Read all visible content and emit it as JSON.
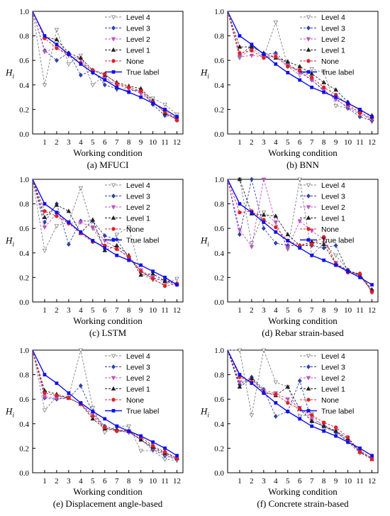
{
  "chart_data": [
    {
      "type": "line",
      "caption": "(a) MFUCI",
      "xlabel": "Working condition",
      "ylabel": "H_i",
      "ylabel_main": "H",
      "ylabel_sub": "i",
      "x": [
        0,
        1,
        2,
        3,
        4,
        5,
        6,
        7,
        8,
        9,
        10,
        11,
        12
      ],
      "xticks": [
        "1",
        "2",
        "3",
        "4",
        "5",
        "6",
        "7",
        "8",
        "9",
        "10",
        "11",
        "12"
      ],
      "yticks": [
        "0.0",
        "0.2",
        "0.4",
        "0.6",
        "0.8",
        "1.0"
      ],
      "xlim": [
        0,
        12.5
      ],
      "ylim": [
        0,
        1
      ],
      "legend_position": "top-right",
      "series": [
        {
          "name": "Level 4",
          "color": "#808080",
          "values": [
            1.0,
            0.4,
            0.85,
            0.57,
            0.64,
            0.4,
            0.48,
            0.36,
            0.37,
            0.34,
            0.29,
            0.24,
            0.16
          ]
        },
        {
          "name": "Level 3",
          "color": "#3040a8",
          "values": [
            1.0,
            0.68,
            0.6,
            0.66,
            0.48,
            0.52,
            0.4,
            0.37,
            0.35,
            0.36,
            0.24,
            0.15,
            0.14
          ]
        },
        {
          "name": "Level 2",
          "color": "#c050c0",
          "values": [
            1.0,
            0.67,
            0.7,
            0.64,
            0.61,
            0.5,
            0.45,
            0.4,
            0.37,
            0.33,
            0.26,
            0.19,
            0.12
          ]
        },
        {
          "name": "Level 1",
          "color": "#202020",
          "values": [
            1.0,
            0.79,
            0.77,
            0.66,
            0.62,
            0.52,
            0.48,
            0.42,
            0.39,
            0.37,
            0.27,
            0.17,
            0.12
          ]
        },
        {
          "name": "None",
          "color": "#e02020",
          "values": [
            1.0,
            0.78,
            0.7,
            0.65,
            0.58,
            0.52,
            0.49,
            0.41,
            0.38,
            0.35,
            0.26,
            0.18,
            0.11
          ]
        },
        {
          "name": "True label",
          "color": "#1010ee",
          "values": [
            1.0,
            0.8,
            0.73,
            0.65,
            0.57,
            0.5,
            0.44,
            0.38,
            0.34,
            0.3,
            0.25,
            0.2,
            0.14
          ]
        }
      ]
    },
    {
      "type": "line",
      "caption": "(b) BNN",
      "xlabel": "Working condition",
      "ylabel": "H_i",
      "ylabel_main": "H",
      "ylabel_sub": "i",
      "x": [
        0,
        1,
        2,
        3,
        4,
        5,
        6,
        7,
        8,
        9,
        10,
        11,
        12
      ],
      "xticks": [
        "1",
        "2",
        "3",
        "4",
        "5",
        "6",
        "7",
        "8",
        "9",
        "10",
        "11",
        "12"
      ],
      "yticks": [
        "0.0",
        "0.2",
        "0.4",
        "0.6",
        "0.8",
        "1.0"
      ],
      "xlim": [
        0,
        12.5
      ],
      "ylim": [
        0,
        1
      ],
      "legend_position": "top-right",
      "series": [
        {
          "name": "Level 4",
          "color": "#808080",
          "values": [
            1.0,
            0.62,
            0.7,
            0.63,
            0.91,
            0.55,
            0.48,
            0.53,
            0.5,
            0.23,
            0.21,
            0.19,
            0.1
          ]
        },
        {
          "name": "Level 3",
          "color": "#3040a8",
          "values": [
            1.0,
            0.64,
            0.72,
            0.65,
            0.66,
            0.57,
            0.51,
            0.44,
            0.35,
            0.29,
            0.21,
            0.14,
            0.11
          ]
        },
        {
          "name": "Level 2",
          "color": "#c050c0",
          "values": [
            1.0,
            0.63,
            0.64,
            0.63,
            0.64,
            0.56,
            0.5,
            0.44,
            0.36,
            0.28,
            0.22,
            0.16,
            0.12
          ]
        },
        {
          "name": "Level 1",
          "color": "#202020",
          "values": [
            1.0,
            0.71,
            0.71,
            0.66,
            0.62,
            0.59,
            0.55,
            0.49,
            0.42,
            0.36,
            0.26,
            0.19,
            0.15
          ]
        },
        {
          "name": "None",
          "color": "#e02020",
          "values": [
            1.0,
            0.66,
            0.68,
            0.62,
            0.63,
            0.55,
            0.52,
            0.46,
            0.38,
            0.32,
            0.24,
            0.17,
            0.13
          ]
        },
        {
          "name": "True label",
          "color": "#1010ee",
          "values": [
            1.0,
            0.8,
            0.73,
            0.65,
            0.57,
            0.5,
            0.44,
            0.38,
            0.34,
            0.3,
            0.25,
            0.2,
            0.14
          ]
        }
      ]
    },
    {
      "type": "line",
      "caption": "(c) LSTM",
      "xlabel": "Working condition",
      "ylabel": "H_i",
      "ylabel_main": "H",
      "ylabel_sub": "i",
      "x": [
        0,
        1,
        2,
        3,
        4,
        5,
        6,
        7,
        8,
        9,
        10,
        11,
        12
      ],
      "xticks": [
        "1",
        "2",
        "3",
        "4",
        "5",
        "6",
        "7",
        "8",
        "9",
        "10",
        "11",
        "12"
      ],
      "yticks": [
        "0.0",
        "0.2",
        "0.4",
        "0.6",
        "0.8",
        "1.0"
      ],
      "xlim": [
        0,
        12.5
      ],
      "ylim": [
        0,
        1
      ],
      "legend_position": "top-right",
      "series": [
        {
          "name": "Level 4",
          "color": "#808080",
          "values": [
            1.0,
            0.42,
            0.62,
            0.65,
            0.93,
            0.6,
            0.45,
            0.55,
            0.61,
            0.23,
            0.18,
            0.14,
            0.19
          ]
        },
        {
          "name": "Level 3",
          "color": "#3040a8",
          "values": [
            1.0,
            0.65,
            0.8,
            0.47,
            0.66,
            0.66,
            0.54,
            0.51,
            0.36,
            0.25,
            0.19,
            0.18,
            0.15
          ]
        },
        {
          "name": "Level 2",
          "color": "#c050c0",
          "values": [
            1.0,
            0.61,
            0.72,
            0.64,
            0.65,
            0.61,
            0.5,
            0.44,
            0.36,
            0.26,
            0.2,
            0.16,
            0.14
          ]
        },
        {
          "name": "Level 1",
          "color": "#202020",
          "values": [
            1.0,
            0.69,
            0.79,
            0.74,
            0.56,
            0.67,
            0.42,
            0.46,
            0.38,
            0.22,
            0.23,
            0.17,
            0.15
          ]
        },
        {
          "name": "None",
          "color": "#e02020",
          "values": [
            1.0,
            0.74,
            0.7,
            0.64,
            0.56,
            0.49,
            0.46,
            0.43,
            0.37,
            0.25,
            0.19,
            0.13,
            0.15
          ]
        },
        {
          "name": "True label",
          "color": "#1010ee",
          "values": [
            1.0,
            0.8,
            0.73,
            0.65,
            0.57,
            0.5,
            0.44,
            0.38,
            0.34,
            0.3,
            0.25,
            0.2,
            0.14
          ]
        }
      ]
    },
    {
      "type": "line",
      "caption": "(d) Rebar strain-based",
      "xlabel": "Working condition",
      "ylabel": "H_i",
      "ylabel_main": "H",
      "ylabel_sub": "i",
      "x": [
        0,
        1,
        2,
        3,
        4,
        5,
        6,
        7,
        8,
        9,
        10,
        11,
        12
      ],
      "xticks": [
        "1",
        "2",
        "3",
        "4",
        "5",
        "6",
        "7",
        "8",
        "9",
        "10",
        "11",
        "12"
      ],
      "yticks": [
        "0.0",
        "0.2",
        "0.4",
        "0.6",
        "0.8",
        "1.0"
      ],
      "xlim": [
        0,
        12.5
      ],
      "ylim": [
        0,
        1
      ],
      "legend_position": "top-right",
      "series": [
        {
          "name": "Level 4",
          "color": "#808080",
          "values": [
            1.0,
            1.0,
            0.48,
            0.73,
            0.65,
            0.43,
            1.0,
            0.38,
            0.48,
            0.38,
            0.26,
            0.21,
            0.09
          ]
        },
        {
          "name": "Level 3",
          "color": "#3040a8",
          "values": [
            1.0,
            0.55,
            1.0,
            0.6,
            0.48,
            0.46,
            0.46,
            0.46,
            0.44,
            0.46,
            0.25,
            0.23,
            0.08
          ]
        },
        {
          "name": "Level 2",
          "color": "#c050c0",
          "values": [
            1.0,
            0.59,
            0.45,
            1.0,
            0.65,
            0.44,
            0.66,
            0.58,
            0.51,
            0.32,
            0.25,
            0.21,
            0.09
          ]
        },
        {
          "name": "Level 1",
          "color": "#202020",
          "values": [
            1.0,
            1.0,
            0.72,
            0.71,
            0.7,
            0.55,
            0.46,
            0.49,
            0.47,
            0.31,
            0.26,
            0.22,
            0.1
          ]
        },
        {
          "name": "None",
          "color": "#e02020",
          "values": [
            1.0,
            0.73,
            0.74,
            0.67,
            0.61,
            0.5,
            0.46,
            0.47,
            0.53,
            0.31,
            0.24,
            0.23,
            0.08
          ]
        },
        {
          "name": "True label",
          "color": "#1010ee",
          "values": [
            1.0,
            0.8,
            0.73,
            0.65,
            0.57,
            0.5,
            0.44,
            0.38,
            0.34,
            0.3,
            0.25,
            0.2,
            0.14
          ]
        }
      ]
    },
    {
      "type": "line",
      "caption": "(e) Displacement angle-based",
      "xlabel": "Working condition",
      "ylabel": "H_i",
      "ylabel_main": "H",
      "ylabel_sub": "i",
      "x": [
        0,
        1,
        2,
        3,
        4,
        5,
        6,
        7,
        8,
        9,
        10,
        11,
        12
      ],
      "xticks": [
        "1",
        "2",
        "3",
        "4",
        "5",
        "6",
        "7",
        "8",
        "9",
        "10",
        "11",
        "12"
      ],
      "yticks": [
        "0.0",
        "0.2",
        "0.4",
        "0.6",
        "0.8",
        "1.0"
      ],
      "xlim": [
        0,
        12.5
      ],
      "ylim": [
        0,
        1
      ],
      "legend_position": "top-right",
      "series": [
        {
          "name": "Level 4",
          "color": "#808080",
          "values": [
            1.0,
            0.51,
            0.62,
            0.62,
            1.0,
            0.53,
            0.33,
            0.38,
            0.38,
            0.18,
            0.18,
            0.11,
            0.1
          ]
        },
        {
          "name": "Level 3",
          "color": "#3040a8",
          "values": [
            1.0,
            0.61,
            0.6,
            0.61,
            0.71,
            0.49,
            0.38,
            0.35,
            0.33,
            0.27,
            0.19,
            0.14,
            0.11
          ]
        },
        {
          "name": "Level 2",
          "color": "#c050c0",
          "values": [
            1.0,
            0.62,
            0.61,
            0.61,
            0.56,
            0.48,
            0.37,
            0.34,
            0.33,
            0.27,
            0.2,
            0.15,
            0.11
          ]
        },
        {
          "name": "Level 1",
          "color": "#202020",
          "values": [
            1.0,
            0.67,
            0.64,
            0.61,
            0.56,
            0.44,
            0.36,
            0.35,
            0.34,
            0.27,
            0.21,
            0.16,
            0.12
          ]
        },
        {
          "name": "None",
          "color": "#e02020",
          "values": [
            1.0,
            0.65,
            0.63,
            0.61,
            0.56,
            0.46,
            0.37,
            0.34,
            0.34,
            0.29,
            0.22,
            0.17,
            0.12
          ]
        },
        {
          "name": "True label",
          "color": "#1010ee",
          "values": [
            1.0,
            0.8,
            0.73,
            0.65,
            0.57,
            0.5,
            0.44,
            0.38,
            0.34,
            0.3,
            0.25,
            0.2,
            0.14
          ]
        }
      ]
    },
    {
      "type": "line",
      "caption": "(f) Concrete strain-based",
      "xlabel": "Working condition",
      "ylabel": "H_i",
      "ylabel_main": "H",
      "ylabel_sub": "i",
      "x": [
        0,
        1,
        2,
        3,
        4,
        5,
        6,
        7,
        8,
        9,
        10,
        11,
        12
      ],
      "xticks": [
        "1",
        "2",
        "3",
        "4",
        "5",
        "6",
        "7",
        "8",
        "9",
        "10",
        "11",
        "12"
      ],
      "yticks": [
        "0.0",
        "0.2",
        "0.4",
        "0.6",
        "0.8",
        "1.0"
      ],
      "xlim": [
        0,
        12.5
      ],
      "ylim": [
        0,
        1
      ],
      "legend_position": "top-right",
      "series": [
        {
          "name": "Level 4",
          "color": "#808080",
          "values": [
            1.0,
            1.0,
            0.47,
            1.0,
            0.74,
            0.7,
            0.46,
            0.48,
            0.36,
            0.34,
            0.25,
            0.16,
            0.12
          ]
        },
        {
          "name": "Level 3",
          "color": "#3040a8",
          "values": [
            1.0,
            0.72,
            0.78,
            0.68,
            0.46,
            0.5,
            0.75,
            0.42,
            0.38,
            0.33,
            0.26,
            0.18,
            0.12
          ]
        },
        {
          "name": "Level 2",
          "color": "#c050c0",
          "values": [
            1.0,
            0.74,
            0.76,
            0.67,
            0.65,
            0.6,
            0.53,
            0.44,
            0.39,
            0.34,
            0.26,
            0.17,
            0.12
          ]
        },
        {
          "name": "Level 1",
          "color": "#202020",
          "values": [
            1.0,
            0.7,
            0.77,
            0.66,
            0.63,
            0.7,
            0.52,
            0.42,
            0.38,
            0.34,
            0.28,
            0.17,
            0.11
          ]
        },
        {
          "name": "None",
          "color": "#e02020",
          "values": [
            1.0,
            0.78,
            0.74,
            0.65,
            0.64,
            0.57,
            0.52,
            0.47,
            0.41,
            0.37,
            0.29,
            0.17,
            0.11
          ]
        },
        {
          "name": "True label",
          "color": "#1010ee",
          "values": [
            1.0,
            0.8,
            0.73,
            0.65,
            0.57,
            0.5,
            0.44,
            0.38,
            0.34,
            0.3,
            0.25,
            0.2,
            0.14
          ]
        }
      ]
    }
  ]
}
